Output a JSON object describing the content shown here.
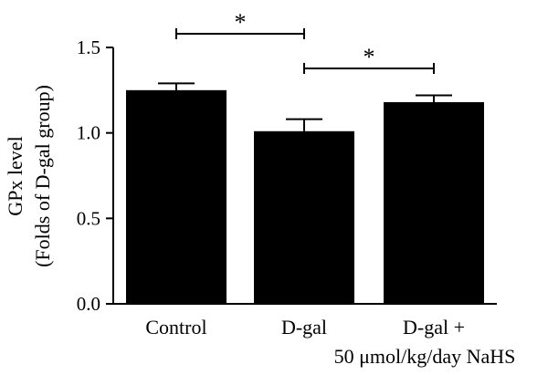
{
  "chart_data": {
    "type": "bar",
    "categories": [
      "Control",
      "D-gal",
      "D-gal +"
    ],
    "category_sublabels": [
      "",
      "",
      "50 μmol/kg/day NaHS"
    ],
    "values": [
      1.25,
      1.01,
      1.18
    ],
    "error": [
      0.04,
      0.07,
      0.04
    ],
    "title": "",
    "xlabel": "",
    "ylabel": "GPx level",
    "ylabel2": "(Folds of D-gal group)",
    "ylim": [
      0,
      1.5
    ],
    "yticks": [
      "0.0",
      "0.5",
      "1.0",
      "1.5"
    ],
    "grid": false,
    "bar_color": "#000000",
    "significance": [
      {
        "from": 0,
        "to": 1,
        "label": "*"
      },
      {
        "from": 1,
        "to": 2,
        "label": "*"
      }
    ]
  }
}
